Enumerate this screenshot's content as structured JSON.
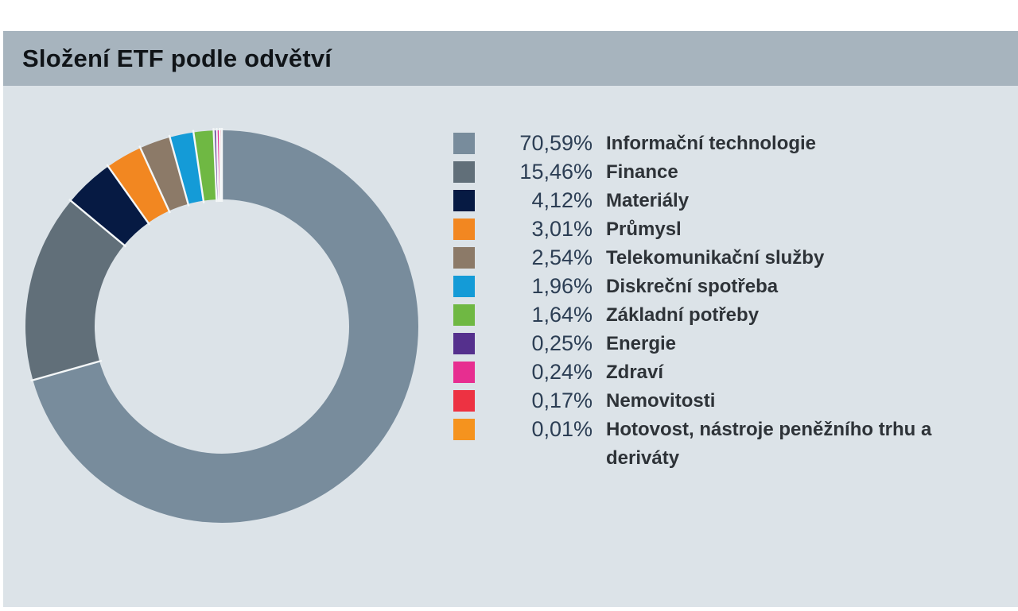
{
  "header": {
    "title": "Složení ETF podle odvětví"
  },
  "legend": {
    "items": [
      {
        "percent": "70,59%",
        "label": "Informační technologie"
      },
      {
        "percent": "15,46%",
        "label": "Finance"
      },
      {
        "percent": "4,12%",
        "label": "Materiály"
      },
      {
        "percent": "3,01%",
        "label": "Průmysl"
      },
      {
        "percent": "2,54%",
        "label": "Telekomunikační služby"
      },
      {
        "percent": "1,96%",
        "label": "Diskreční spotřeba"
      },
      {
        "percent": "1,64%",
        "label": "Základní potřeby"
      },
      {
        "percent": "0,25%",
        "label": "Energie"
      },
      {
        "percent": "0,24%",
        "label": "Zdraví"
      },
      {
        "percent": "0,17%",
        "label": "Nemovitosti"
      },
      {
        "percent": "0,01%",
        "label": "Hotovost, nástroje peněžního trhu a deriváty"
      }
    ]
  },
  "chart_data": {
    "type": "pie",
    "subtype": "donut",
    "title": "Složení ETF podle odvětví",
    "categories": [
      "Informační technologie",
      "Finance",
      "Materiály",
      "Průmysl",
      "Telekomunikační služby",
      "Diskreční spotřeba",
      "Základní potřeby",
      "Energie",
      "Zdraví",
      "Nemovitosti",
      "Hotovost, nástroje peněžního trhu a deriváty"
    ],
    "values": [
      70.59,
      15.46,
      4.12,
      3.01,
      2.54,
      1.96,
      1.64,
      0.25,
      0.24,
      0.17,
      0.01
    ],
    "colors": [
      "#788C9C",
      "#616F79",
      "#061A43",
      "#F28721",
      "#8C7A68",
      "#149BD7",
      "#6FB843",
      "#55308D",
      "#E72E90",
      "#ED3242",
      "#F5931E"
    ],
    "start_angle_deg": 0,
    "direction": "clockwise",
    "inner_radius_ratio": 0.65,
    "legend_position": "right",
    "value_format": "percent_comma_decimal"
  },
  "colors": {
    "header_bg": "#A7B4BE",
    "content_bg": "#DCE3E8",
    "percent_text": "#2C3E54",
    "label_text": "#2E3338",
    "title_text": "#101418",
    "segment_separator": "#F4F7F8"
  }
}
